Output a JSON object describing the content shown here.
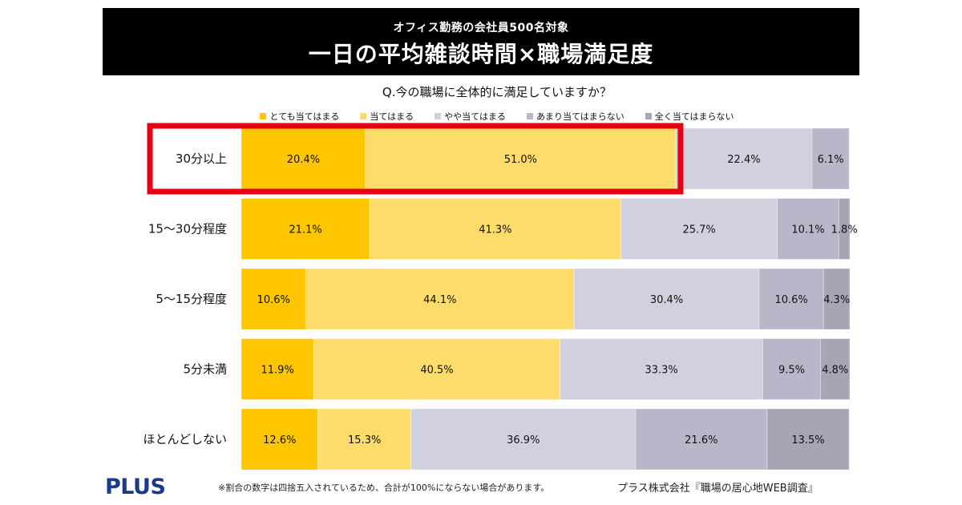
{
  "header": {
    "subtitle": "オフィス勤務の会社員500名対象",
    "title": "一日の平均雑談時間×職場満足度"
  },
  "colors": {
    "highlight_box": "#e60012",
    "logo": "#1a3a8c"
  },
  "chart_data": {
    "type": "bar",
    "orientation": "horizontal-stacked-100",
    "title": "Q.今の職場に全体的に満足していますか？",
    "categories": [
      "30分以上",
      "15～30分程度",
      "5～15分程度",
      "5分未満",
      "ほとんどしない"
    ],
    "highlighted_category": "30分以上",
    "highlighted_series": [
      "とても当てはまる",
      "当てはまる"
    ],
    "legend_position": "top",
    "series": [
      {
        "name": "とても当てはまる",
        "color": "#fdc600",
        "values": [
          20.4,
          21.1,
          10.6,
          11.9,
          12.6
        ],
        "labels": [
          "20.4%",
          "21.1%",
          "10.6%",
          "11.9%",
          "12.6%"
        ]
      },
      {
        "name": "当てはまる",
        "color": "#fddc6b",
        "values": [
          51.0,
          41.3,
          44.1,
          40.5,
          15.3
        ],
        "labels": [
          "51.0%",
          "41.3%",
          "44.1%",
          "40.5%",
          "15.3%"
        ]
      },
      {
        "name": "やや当てはまる",
        "color": "#d1d0de",
        "values": [
          22.4,
          25.7,
          30.4,
          33.3,
          36.9
        ],
        "labels": [
          "22.4%",
          "25.7%",
          "30.4%",
          "33.3%",
          "36.9%"
        ]
      },
      {
        "name": "あまり当てはまらない",
        "color": "#b8b7ca",
        "values": [
          6.1,
          10.1,
          10.6,
          9.5,
          21.6
        ],
        "labels": [
          "6.1%",
          "10.1%",
          "10.6%",
          "9.5%",
          "21.6%"
        ]
      },
      {
        "name": "全く当てはまらない",
        "color": "#a6a5b5",
        "values": [
          0,
          1.8,
          4.3,
          4.8,
          13.5
        ],
        "labels": [
          "",
          "1.8%",
          "4.3%",
          "4.8%",
          "13.5%"
        ]
      }
    ],
    "xlim": [
      0,
      100
    ]
  },
  "footer": {
    "logo": "PLUS",
    "note": "※割合の数字は四捨五入されているため、合計が100%にならない場合があります。",
    "source": "プラス株式会社『職場の居心地WEB調査』"
  }
}
